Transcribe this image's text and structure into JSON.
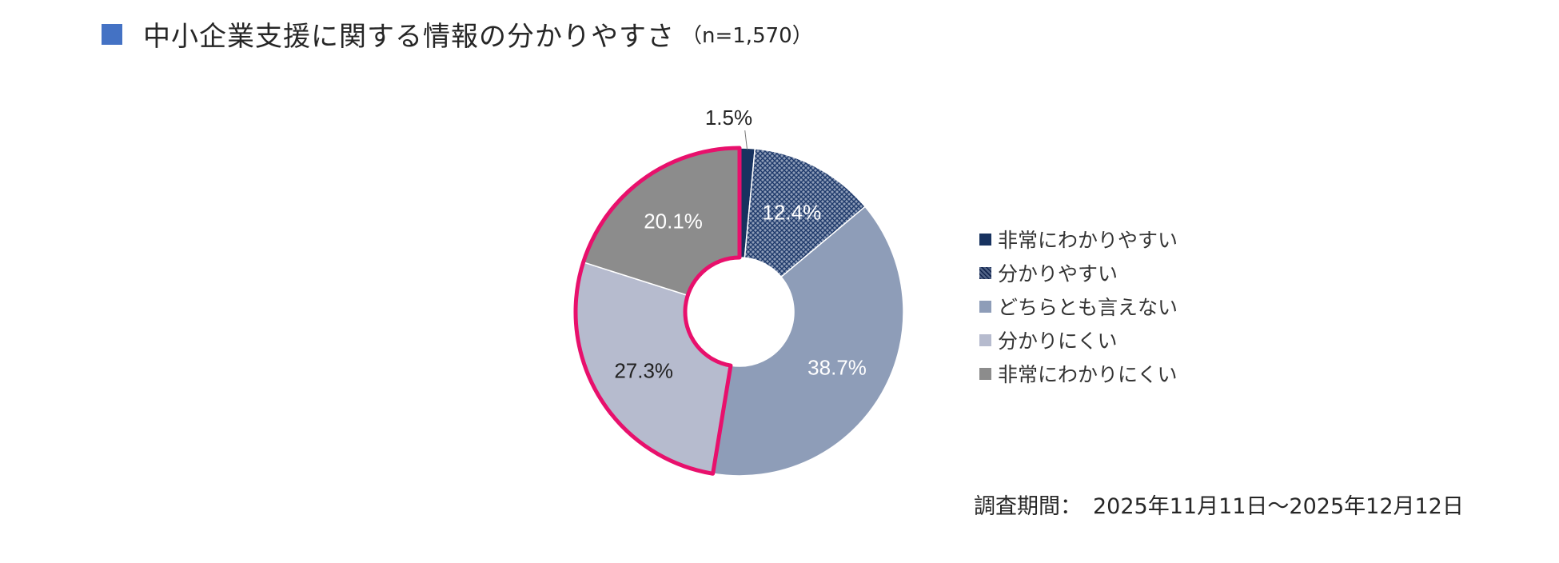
{
  "header": {
    "title": "中小企業支援に関する情報の分かりやすさ",
    "sample": "（n=1,570）",
    "marker_color": "#4472c4"
  },
  "footer": {
    "period_label": "調査期間：",
    "period_value": "2025年11月11日～2025年12月12日"
  },
  "highlight_color": "#e8106c",
  "chart_data": {
    "type": "pie",
    "subtype": "donut",
    "start_angle_deg": 0,
    "direction": "clockwise",
    "slices": [
      {
        "label": "非常にわかりやすい",
        "value": 1.5,
        "display": "1.5%",
        "color": "#17325f",
        "pattern": "solid",
        "label_color": "#222222",
        "label_position": "outside"
      },
      {
        "label": "分かりやすい",
        "value": 12.4,
        "display": "12.4%",
        "color": "#8e9db8",
        "pattern": "crosshatch",
        "label_color": "#ffffff",
        "label_position": "inside"
      },
      {
        "label": "どちらとも言えない",
        "value": 38.7,
        "display": "38.7%",
        "color": "#8e9db8",
        "pattern": "solid",
        "label_color": "#ffffff",
        "label_position": "inside"
      },
      {
        "label": "分かりにくい",
        "value": 27.3,
        "display": "27.3%",
        "color": "#b6bbce",
        "pattern": "solid",
        "label_color": "#222222",
        "label_position": "inside",
        "highlighted": true
      },
      {
        "label": "非常にわかりにくい",
        "value": 20.1,
        "display": "20.1%",
        "color": "#8c8c8c",
        "pattern": "solid",
        "label_color": "#ffffff",
        "label_position": "inside",
        "highlighted": true
      }
    ],
    "legend_position": "right"
  }
}
